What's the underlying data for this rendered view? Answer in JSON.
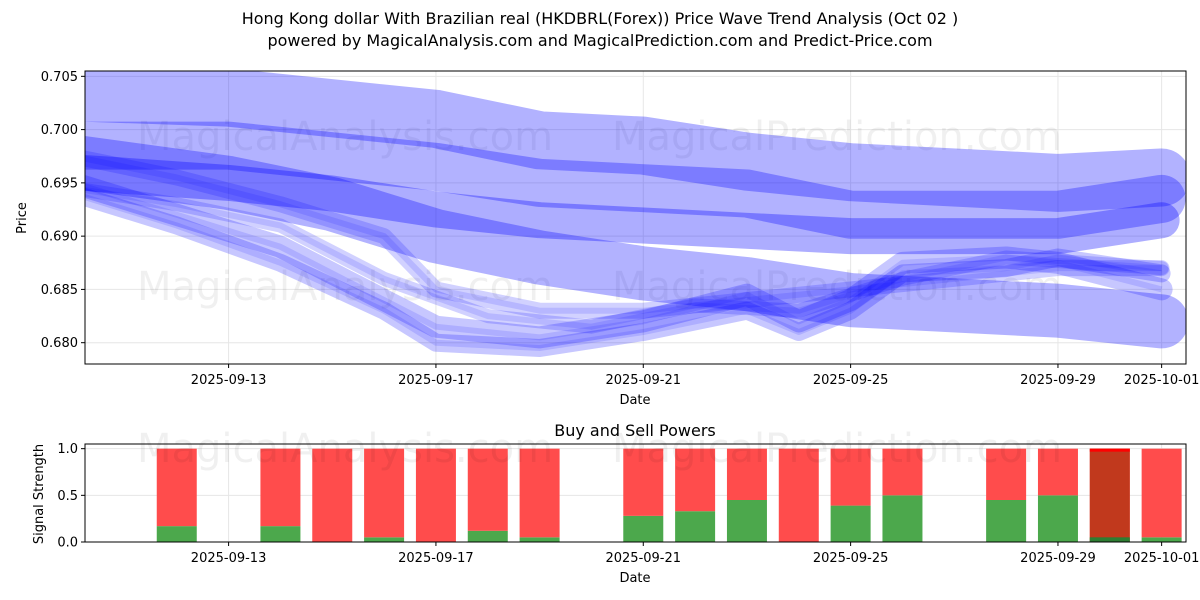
{
  "header": {
    "title_line1": "Hong Kong dollar With Brazilian real (HKDBRL(Forex)) Price Wave Trend Analysis (Oct 02 )",
    "title_line2": "powered by MagicalAnalysis.com and MagicalPrediction.com and Predict-Price.com"
  },
  "watermarks": [
    "MagicalAnalysis.com",
    "MagicalPrediction.com"
  ],
  "colors": {
    "wave": "#0000ff",
    "buy": "#4ca84c",
    "sell": "#ff4c4c",
    "sell_strong": "#ff0000",
    "buy_dark": "#2e7d32",
    "overlay_dark": "#c1391d",
    "grid": "#e6e6e6"
  },
  "chart_data": [
    {
      "type": "line",
      "name": "price-wave-chart",
      "xlabel": "Date",
      "ylabel": "Price",
      "x_range": [
        "2025-09-10",
        "2025-10-02"
      ],
      "ylim": [
        0.678,
        0.7055
      ],
      "yticks": [
        "0.680",
        "0.685",
        "0.690",
        "0.695",
        "0.700",
        "0.705"
      ],
      "xticks": [
        "2025-09-13",
        "2025-09-17",
        "2025-09-21",
        "2025-09-25",
        "2025-09-29",
        "2025-10-01"
      ],
      "grid": true,
      "series": [
        {
          "name": "wave-upper",
          "x": [
            "2025-09-10",
            "2025-09-13",
            "2025-09-17",
            "2025-09-19",
            "2025-09-21",
            "2025-09-23",
            "2025-09-25",
            "2025-09-27",
            "2025-09-29",
            "2025-10-01"
          ],
          "y": [
            0.7035,
            0.703,
            0.701,
            0.699,
            0.6985,
            0.697,
            0.696,
            0.6955,
            0.695,
            0.6955
          ]
        },
        {
          "name": "wave-mid-high",
          "x": [
            "2025-09-10",
            "2025-09-13",
            "2025-09-17",
            "2025-09-19",
            "2025-09-21",
            "2025-09-23",
            "2025-09-25",
            "2025-09-27",
            "2025-09-29",
            "2025-10-01"
          ],
          "y": [
            0.6985,
            0.6985,
            0.6965,
            0.695,
            0.6945,
            0.694,
            0.692,
            0.692,
            0.692,
            0.6935
          ]
        },
        {
          "name": "wave-mid",
          "x": [
            "2025-09-10",
            "2025-09-13",
            "2025-09-15",
            "2025-09-17",
            "2025-09-19",
            "2025-09-21",
            "2025-09-23",
            "2025-09-25",
            "2025-09-27",
            "2025-09-29",
            "2025-10-01"
          ],
          "y": [
            0.696,
            0.695,
            0.694,
            0.6925,
            0.6915,
            0.691,
            0.6905,
            0.69,
            0.69,
            0.69,
            0.6915
          ]
        },
        {
          "name": "wave-mid-low",
          "x": [
            "2025-09-10",
            "2025-09-13",
            "2025-09-15",
            "2025-09-17",
            "2025-09-19",
            "2025-09-21",
            "2025-09-23",
            "2025-09-25",
            "2025-09-27",
            "2025-09-29",
            "2025-10-01"
          ],
          "y": [
            0.697,
            0.695,
            0.693,
            0.69,
            0.688,
            0.6865,
            0.6855,
            0.684,
            0.6835,
            0.683,
            0.682
          ]
        },
        {
          "name": "price-path-a",
          "x": [
            "2025-09-10",
            "2025-09-12",
            "2025-09-14",
            "2025-09-16",
            "2025-09-17",
            "2025-09-19",
            "2025-09-21",
            "2025-09-23",
            "2025-09-24",
            "2025-09-25",
            "2025-09-26",
            "2025-09-28",
            "2025-09-29",
            "2025-10-01"
          ],
          "y": [
            0.695,
            0.692,
            0.689,
            0.684,
            0.6815,
            0.6805,
            0.682,
            0.6845,
            0.682,
            0.684,
            0.6875,
            0.688,
            0.6875,
            0.685
          ]
        },
        {
          "name": "price-path-b",
          "x": [
            "2025-09-10",
            "2025-09-12",
            "2025-09-14",
            "2025-09-16",
            "2025-09-17",
            "2025-09-19",
            "2025-09-21",
            "2025-09-23",
            "2025-09-24",
            "2025-09-25",
            "2025-09-26",
            "2025-09-28",
            "2025-09-29",
            "2025-10-01"
          ],
          "y": [
            0.694,
            0.691,
            0.6875,
            0.683,
            0.68,
            0.6795,
            0.681,
            0.683,
            0.681,
            0.683,
            0.6865,
            0.687,
            0.688,
            0.6865
          ]
        },
        {
          "name": "price-path-c",
          "x": [
            "2025-09-10",
            "2025-09-12",
            "2025-09-14",
            "2025-09-15",
            "2025-09-16",
            "2025-09-17",
            "2025-09-19",
            "2025-09-21",
            "2025-09-23",
            "2025-09-25",
            "2025-09-27",
            "2025-09-29",
            "2025-10-01"
          ],
          "y": [
            0.6975,
            0.6955,
            0.693,
            0.6915,
            0.69,
            0.685,
            0.683,
            0.683,
            0.684,
            0.685,
            0.686,
            0.687,
            0.687
          ]
        },
        {
          "name": "price-path-d",
          "x": [
            "2025-09-10",
            "2025-09-12",
            "2025-09-14",
            "2025-09-16",
            "2025-09-18",
            "2025-09-20",
            "2025-09-22",
            "2025-09-24",
            "2025-09-26",
            "2025-09-28",
            "2025-10-01"
          ],
          "y": [
            0.6945,
            0.693,
            0.691,
            0.686,
            0.6825,
            0.6815,
            0.6835,
            0.683,
            0.686,
            0.688,
            0.687
          ]
        }
      ]
    },
    {
      "type": "bar",
      "name": "buy-sell-powers",
      "title": "Buy and Sell Powers",
      "xlabel": "Date",
      "ylabel": "Signal Strength",
      "ylim": [
        0,
        1.05
      ],
      "yticks": [
        "0.0",
        "0.5",
        "1.0"
      ],
      "xticks": [
        "2025-09-13",
        "2025-09-17",
        "2025-09-21",
        "2025-09-25",
        "2025-09-29",
        "2025-10-01"
      ],
      "categories": [
        "2025-09-12",
        "2025-09-14",
        "2025-09-15",
        "2025-09-16",
        "2025-09-17",
        "2025-09-18",
        "2025-09-19",
        "2025-09-21",
        "2025-09-22",
        "2025-09-23",
        "2025-09-24",
        "2025-09-25",
        "2025-09-26",
        "2025-09-28",
        "2025-09-29",
        "2025-09-30",
        "2025-10-01"
      ],
      "series": [
        {
          "name": "buy",
          "values": [
            0.17,
            0.17,
            0.0,
            0.05,
            0.0,
            0.12,
            0.05,
            0.28,
            0.33,
            0.45,
            0.0,
            0.39,
            0.5,
            0.45,
            0.5,
            0.05,
            0.05
          ]
        },
        {
          "name": "sell",
          "values": [
            0.83,
            0.83,
            1.0,
            0.95,
            1.0,
            0.88,
            0.95,
            0.72,
            0.67,
            0.55,
            1.0,
            0.61,
            0.5,
            0.55,
            0.5,
            0.95,
            0.95
          ]
        }
      ],
      "dark_overlay_category": "2025-09-30"
    }
  ]
}
